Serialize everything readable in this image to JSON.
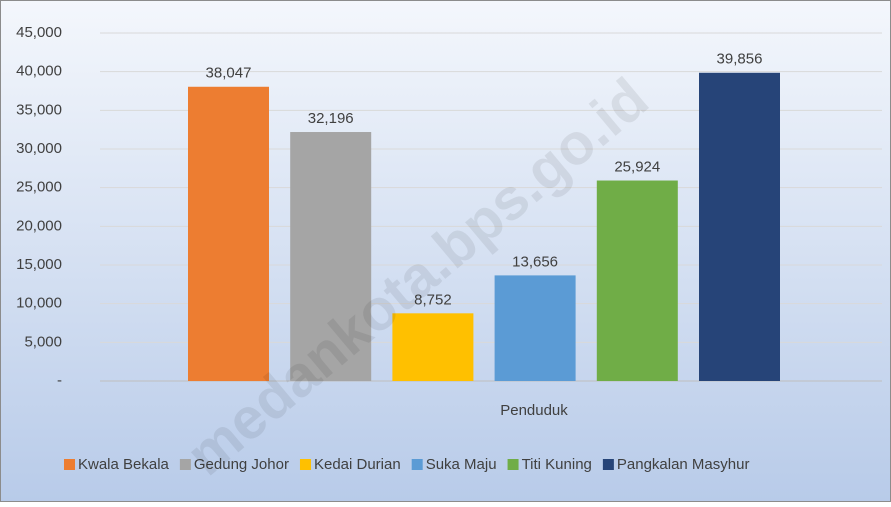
{
  "chart_data": {
    "type": "bar",
    "categories": [
      "Penduduk"
    ],
    "series": [
      {
        "name": "Kwala Bekala",
        "color": "#ED7D31",
        "values": [
          38047
        ],
        "value_labels": [
          "38,047"
        ]
      },
      {
        "name": "Gedung Johor",
        "color": "#A5A5A5",
        "values": [
          32196
        ],
        "value_labels": [
          "32,196"
        ]
      },
      {
        "name": "Kedai Durian",
        "color": "#FFC000",
        "values": [
          8752
        ],
        "value_labels": [
          "8,752"
        ]
      },
      {
        "name": "Suka Maju",
        "color": "#5B9BD5",
        "values": [
          13656
        ],
        "value_labels": [
          "13,656"
        ]
      },
      {
        "name": "Titi Kuning",
        "color": "#70AD47",
        "values": [
          25924
        ],
        "value_labels": [
          "25,924"
        ]
      },
      {
        "name": "Pangkalan Masyhur",
        "color": "#264478",
        "values": [
          39856
        ],
        "value_labels": [
          "39,856"
        ]
      }
    ],
    "ylim": [
      0,
      45000
    ],
    "yticks": [
      {
        "value": 0,
        "label": "-"
      },
      {
        "value": 5000,
        "label": "5,000"
      },
      {
        "value": 10000,
        "label": "10,000"
      },
      {
        "value": 15000,
        "label": "15,000"
      },
      {
        "value": 20000,
        "label": "20,000"
      },
      {
        "value": 25000,
        "label": "25,000"
      },
      {
        "value": 30000,
        "label": "30,000"
      },
      {
        "value": 35000,
        "label": "35,000"
      },
      {
        "value": 40000,
        "label": "40,000"
      },
      {
        "value": 45000,
        "label": "45,000"
      }
    ],
    "grid": true,
    "legend": "bottom",
    "watermark": "medankota.bps.go.id"
  }
}
